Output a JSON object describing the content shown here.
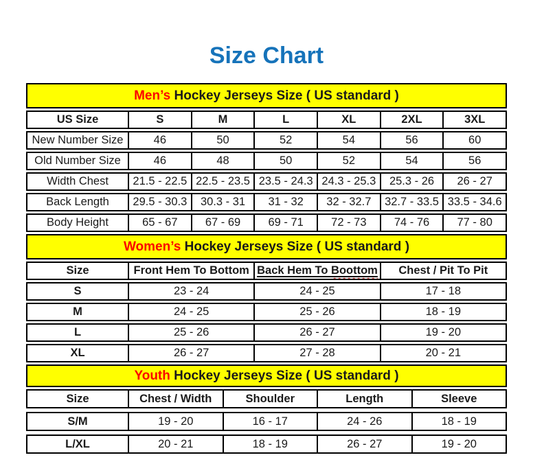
{
  "page_title": "Size Chart",
  "colors": {
    "title_blue": "#1673BA",
    "accent_red": "#FB0200",
    "banner_yellow": "#FFFF00",
    "border_black": "#000000"
  },
  "sections": [
    {
      "id": "mens",
      "banner": {
        "highlight": "Men’s",
        "rest": " Hockey Jerseys Size ( US standard )"
      },
      "header": [
        "US Size",
        "S",
        "M",
        "L",
        "XL",
        "2XL",
        "3XL"
      ],
      "rows": [
        {
          "label": "New Number Size",
          "values": [
            "46",
            "50",
            "52",
            "54",
            "56",
            "60"
          ]
        },
        {
          "label": "Old Number Size",
          "values": [
            "46",
            "48",
            "50",
            "52",
            "54",
            "56"
          ]
        },
        {
          "label": "Width Chest",
          "values": [
            "21.5 - 22.5",
            "22.5 - 23.5",
            "23.5 - 24.3",
            "24.3 - 25.3",
            "25.3 - 26",
            "26 - 27"
          ]
        },
        {
          "label": "Back Length",
          "values": [
            "29.5 - 30.3",
            "30.3 - 31",
            "31 - 32",
            "32 - 32.7",
            "32.7 - 33.5",
            "33.5 - 34.6"
          ]
        },
        {
          "label": "Body Height",
          "values": [
            "65 - 67",
            "67 - 69",
            "69 - 71",
            "72 - 73",
            "74 - 76",
            "77 - 80"
          ]
        }
      ]
    },
    {
      "id": "womens",
      "banner": {
        "highlight": "Women’s",
        "rest": " Hockey Jerseys Size ( US standard )"
      },
      "header": [
        "Size",
        "Front Hem To Bottom",
        {
          "pre": "Back Hem To ",
          "wavy": "Boottom"
        },
        "Chest / Pit To Pit"
      ],
      "rows": [
        {
          "label": "S",
          "values": [
            "23 - 24",
            "24 - 25",
            "17 - 18"
          ]
        },
        {
          "label": "M",
          "values": [
            "24 - 25",
            "25 - 26",
            "18 - 19"
          ]
        },
        {
          "label": "L",
          "values": [
            "25 - 26",
            "26 - 27",
            "19 - 20"
          ]
        },
        {
          "label": "XL",
          "values": [
            "26 - 27",
            "27 - 28",
            "20 - 21"
          ]
        }
      ]
    },
    {
      "id": "youth",
      "banner": {
        "highlight": "Youth",
        "rest": " Hockey Jerseys Size ( US standard )"
      },
      "header": [
        "Size",
        "Chest / Width",
        "Shoulder",
        "Length",
        "Sleeve"
      ],
      "rows": [
        {
          "label": "S/M",
          "values": [
            "19 - 20",
            "16 - 17",
            "24 - 26",
            "18 - 19"
          ]
        },
        {
          "label": "L/XL",
          "values": [
            "20 - 21",
            "18 - 19",
            "26 - 27",
            "19 - 20"
          ]
        }
      ]
    }
  ]
}
